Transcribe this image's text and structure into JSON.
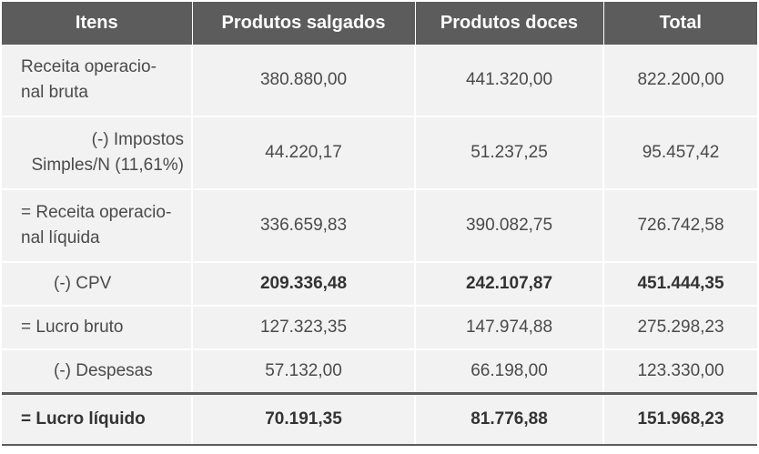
{
  "table": {
    "headers": [
      "Itens",
      "Produtos salgados",
      "Produtos doces",
      "Total"
    ],
    "rows": [
      {
        "label": "Receita operacio-\nnal bruta",
        "salgados": "380.880,00",
        "doces": "441.320,00",
        "total": "822.200,00"
      },
      {
        "label": "(-) Impostos\nSimples/N (11,61%)",
        "salgados": "44.220,17",
        "doces": "51.237,25",
        "total": "95.457,42"
      },
      {
        "label": "= Receita operacio-\nnal líquida",
        "salgados": "336.659,83",
        "doces": "390.082,75",
        "total": "726.742,58"
      },
      {
        "label": "(-) CPV",
        "salgados": "209.336,48",
        "doces": "242.107,87",
        "total": "451.444,35"
      },
      {
        "label": "= Lucro bruto",
        "salgados": "127.323,35",
        "doces": "147.974,88",
        "total": "275.298,23"
      },
      {
        "label": "(-) Despesas",
        "salgados": "57.132,00",
        "doces": "66.198,00",
        "total": "123.330,00"
      },
      {
        "label": "= Lucro líquido",
        "salgados": "70.191,35",
        "doces": "81.776,88",
        "total": "151.968,23"
      }
    ]
  }
}
